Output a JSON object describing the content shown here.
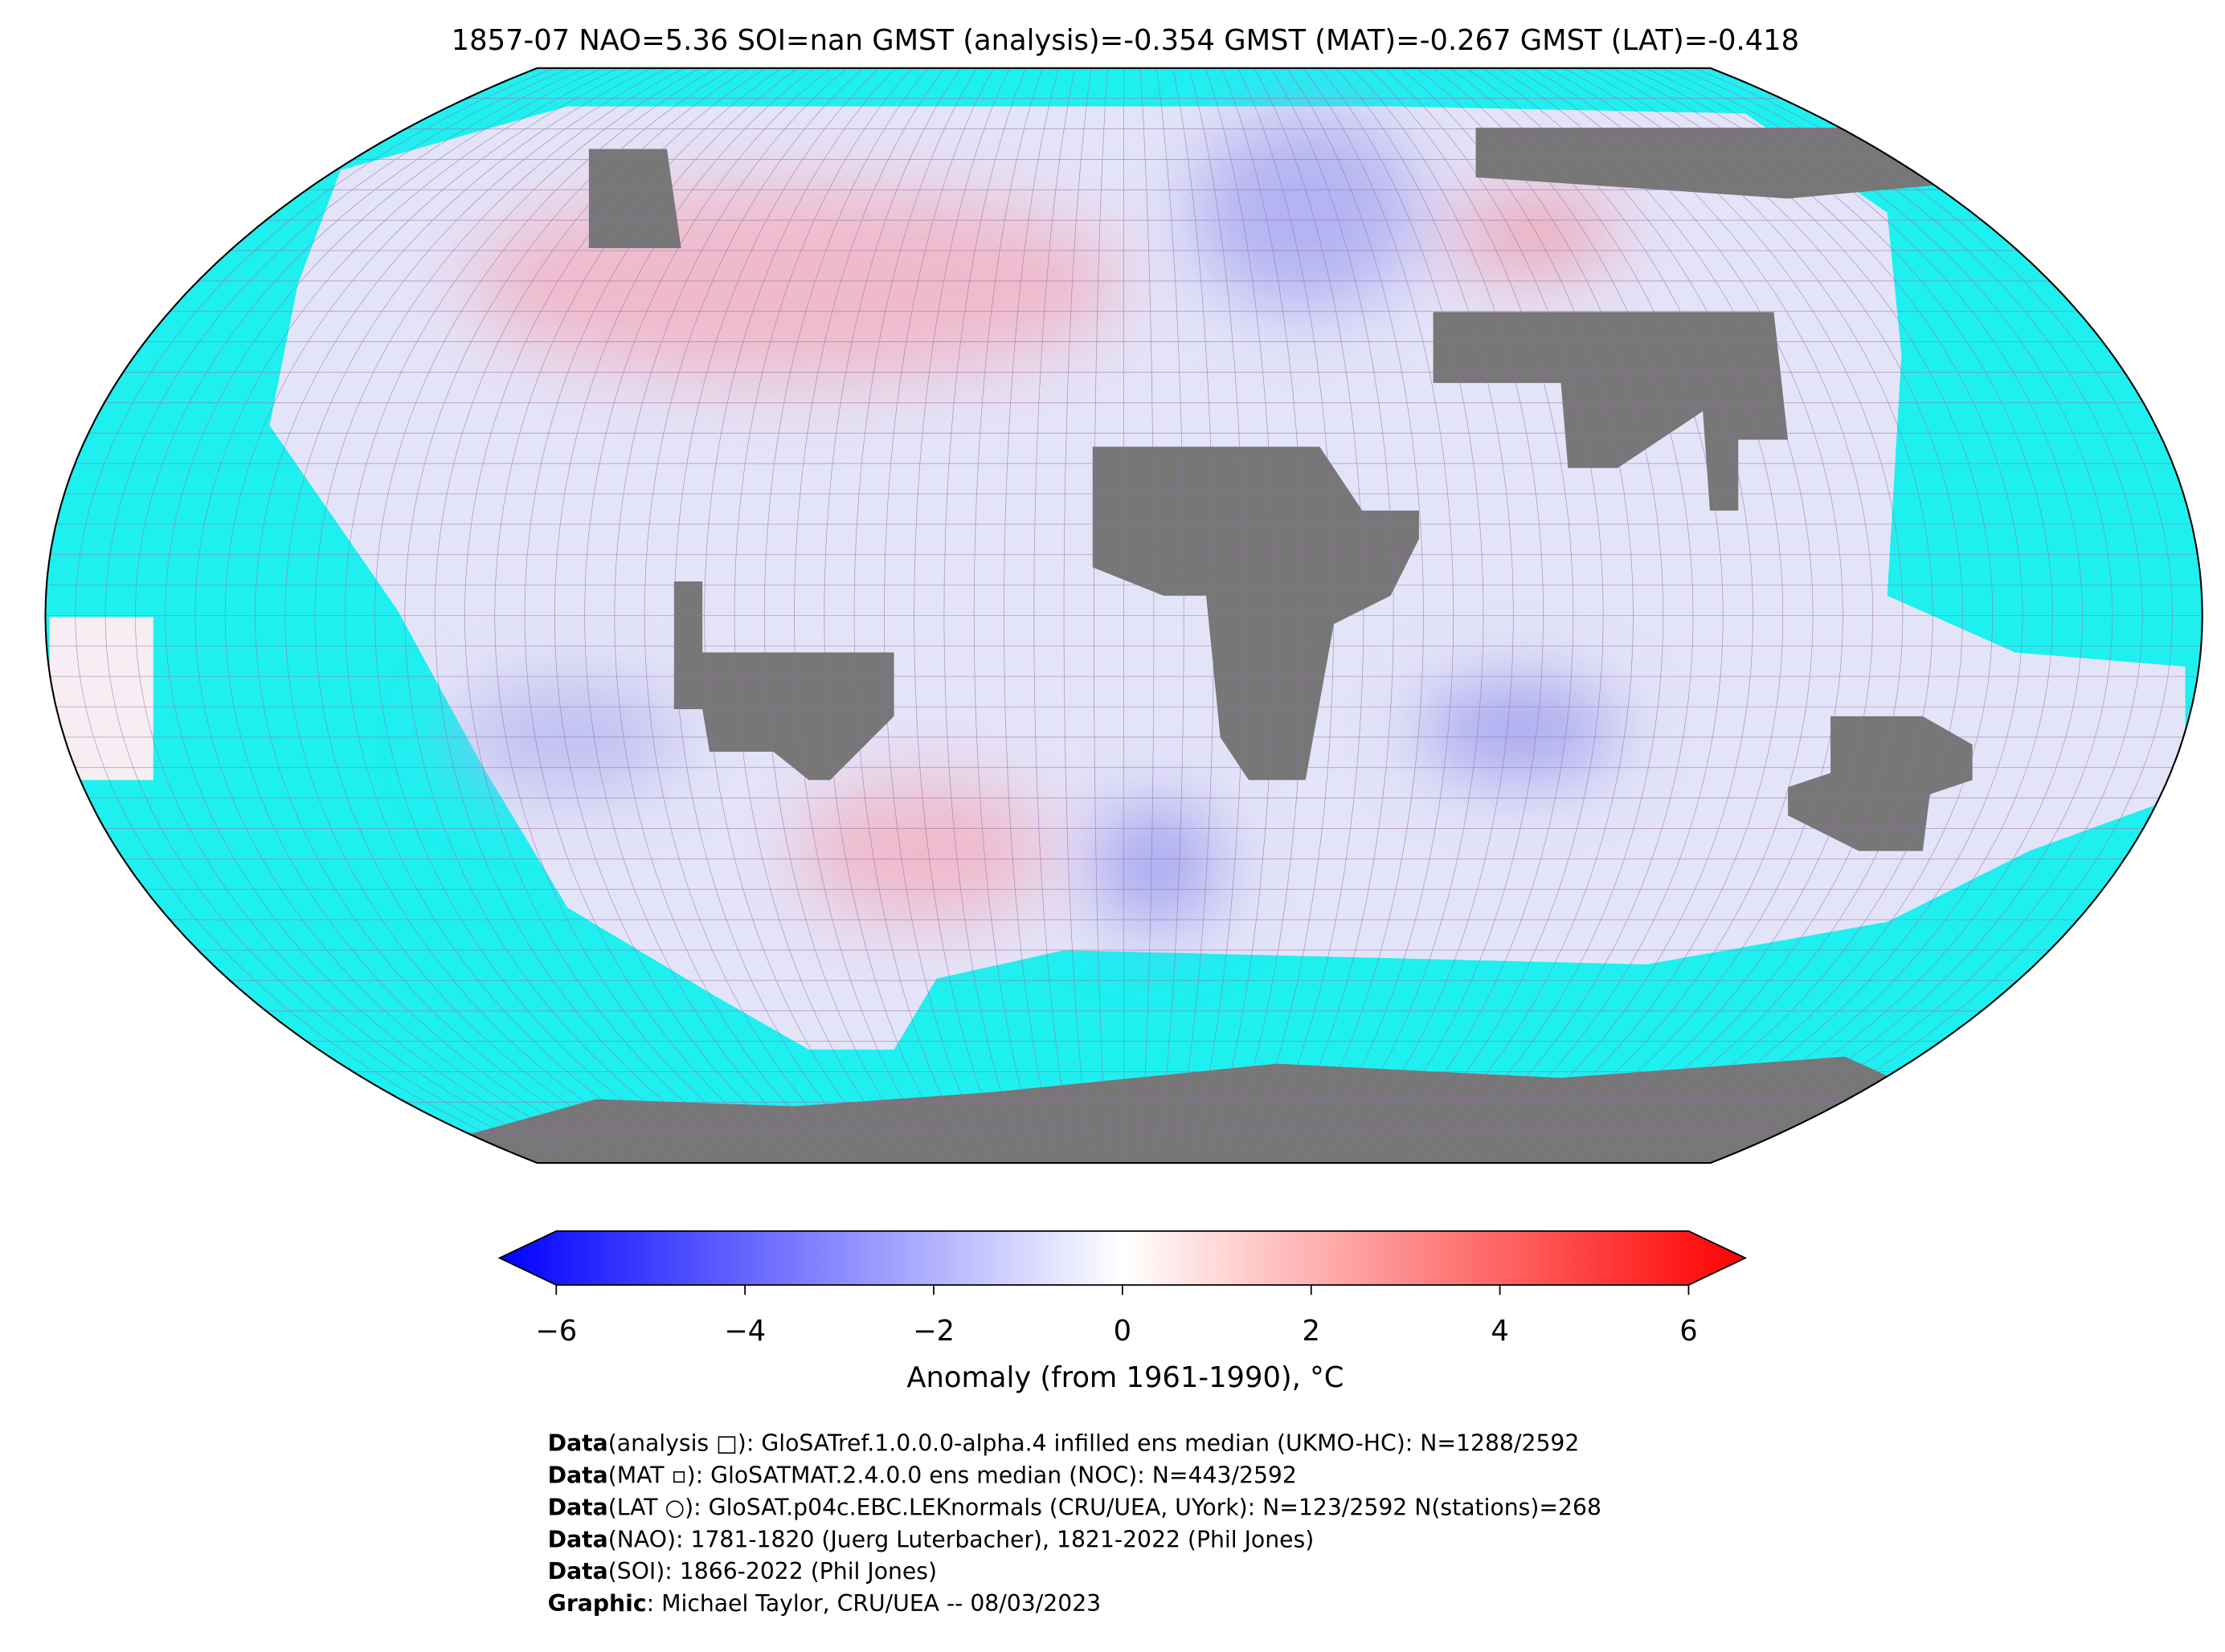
{
  "title": "1857-07 NAO=5.36 SOI=nan GMST (analysis)=-0.354 GMST (MAT)=-0.267 GMST (LAT)=-0.418",
  "colorbar": {
    "label": "Anomaly (from 1961-1990), °C",
    "lim": [
      -6,
      6
    ],
    "ticks": [
      {
        "value": -6,
        "label": "−6"
      },
      {
        "value": -4,
        "label": "−4"
      },
      {
        "value": -2,
        "label": "−2"
      },
      0,
      2,
      4,
      6
    ]
  },
  "credits": [
    {
      "label": "Data",
      "text": "(analysis □): GloSATref.1.0.0.0-alpha.4 infilled ens median (UKMO-HC): N=1288/2592"
    },
    {
      "label": "Data",
      "text": "(MAT ▫): GloSATMAT.2.4.0.0 ens median (NOC): N=443/2592"
    },
    {
      "label": "Data",
      "text": "(LAT ○): GloSAT.p04c.EBC.LEKnormals (CRU/UEA, UYork): N=123/2592 N(stations)=268"
    },
    {
      "label": "Data",
      "text": "(NAO): 1781-1820 (Juerg Luterbacher), 1821-2022 (Phil Jones)"
    },
    {
      "label": "Data",
      "text": "(SOI): 1866-2022 (Phil Jones)"
    },
    {
      "label": "Graphic",
      "text": ": Michael Taylor, CRU/UEA -- 08/03/2023"
    }
  ]
}
